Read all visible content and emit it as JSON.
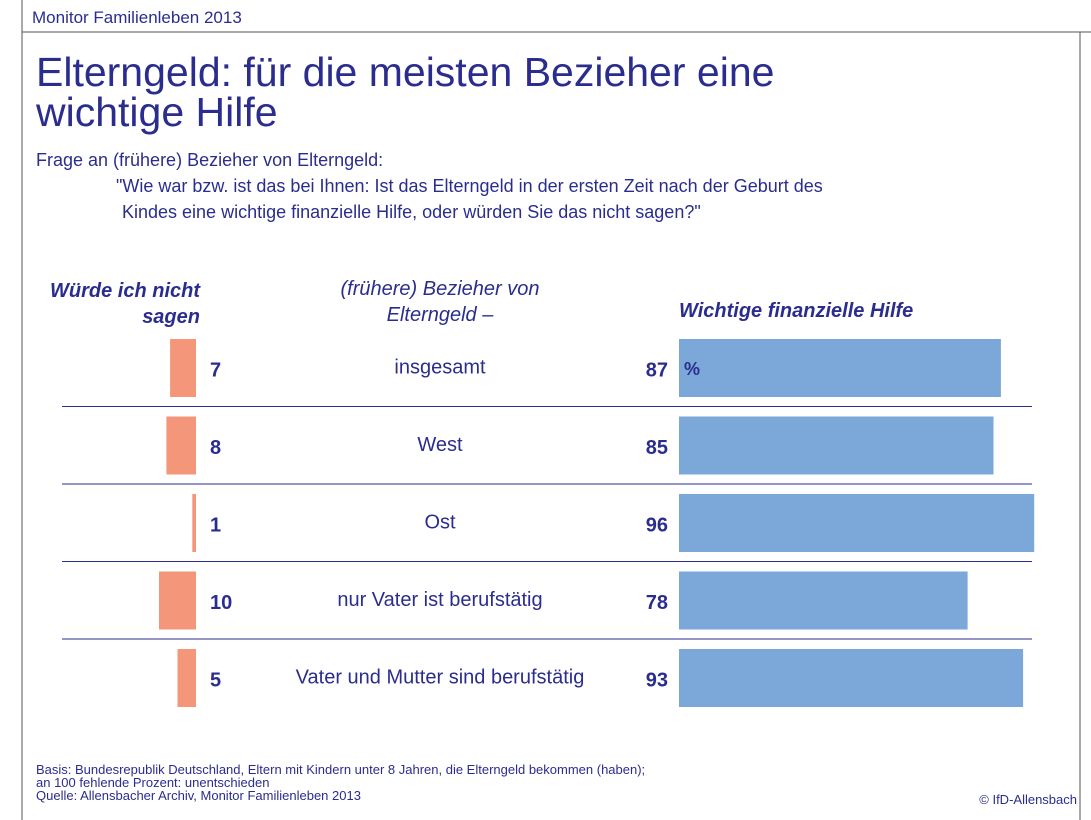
{
  "header": "Monitor Familienleben 2013",
  "chart_data": {
    "type": "diverging-bar",
    "title_lines": [
      "Elterngeld: für die meisten Bezieher eine",
      "wichtige Hilfe"
    ],
    "question_intro": "Frage an (frühere) Bezieher von Elterngeld:",
    "question_lines": [
      "\"Wie war bzw. ist das bei Ihnen: Ist das Elterngeld in der ersten Zeit nach der Geburt des",
      "Kindes eine wichtige finanzielle Hilfe, oder würden Sie das nicht sagen?\""
    ],
    "category_header": "(frühere) Bezieher von Elterngeld –",
    "categories": [
      "insgesamt",
      "West",
      "Ost",
      "nur Vater ist berufstätig",
      "Vater und Mutter sind berufstätig"
    ],
    "unit_label": "%",
    "series": [
      {
        "name": "Würde ich nicht sagen",
        "color": "#f4967a",
        "side": "left",
        "values": [
          7,
          8,
          1,
          10,
          5
        ]
      },
      {
        "name": "Wichtige finanzielle Hilfe",
        "color": "#7ba7d9",
        "side": "right",
        "values": [
          87,
          85,
          96,
          78,
          93
        ]
      }
    ],
    "notes": [
      "Basis: Bundesrepublik Deutschland, Eltern mit Kindern unter 8 Jahren, die Elterngeld bekommen (haben);",
      "an 100 fehlende Prozent: unentschieden",
      "Quelle: Allensbacher Archiv, Monitor Familienleben 2013"
    ],
    "copyright": "© IfD-Allensbach"
  }
}
